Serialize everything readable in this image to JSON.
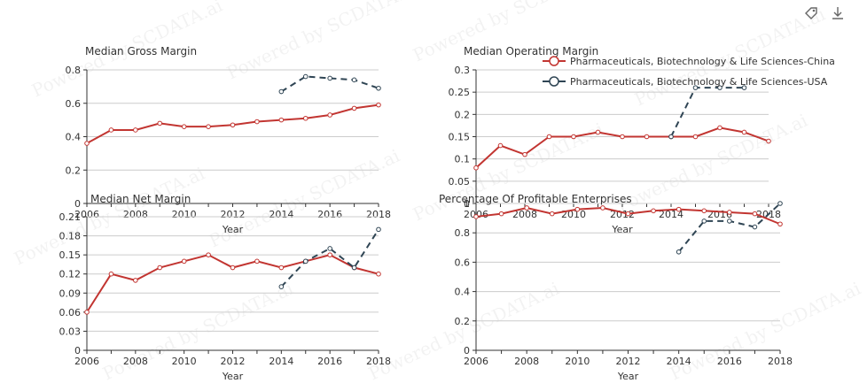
{
  "toolbox": {
    "icons": [
      "tag-icon",
      "download-icon"
    ]
  },
  "watermark": "Powered by SCDATA.ai",
  "colors": {
    "china": "#c23531",
    "usa": "#2f4554",
    "axis": "#333333",
    "grid": "#cccccc",
    "text": "#333333"
  },
  "chart_data": [
    {
      "type": "line",
      "title": "Median Gross Margin",
      "xlabel": "Year",
      "x": [
        2006,
        2007,
        2008,
        2009,
        2010,
        2011,
        2012,
        2013,
        2014,
        2015,
        2016,
        2017,
        2018
      ],
      "xticks": [
        2006,
        2008,
        2010,
        2012,
        2014,
        2016,
        2018
      ],
      "ylim": [
        0,
        0.8
      ],
      "yticks": [
        0,
        0.2,
        0.4,
        0.6,
        0.8
      ],
      "grid": true,
      "series": [
        {
          "name": "Pharmaceuticals, Biotechnology & Life Sciences-China",
          "x": [
            2006,
            2007,
            2008,
            2009,
            2010,
            2011,
            2012,
            2013,
            2014,
            2015,
            2016,
            2017,
            2018
          ],
          "values": [
            0.36,
            0.44,
            0.44,
            0.48,
            0.46,
            0.46,
            0.47,
            0.49,
            0.5,
            0.51,
            0.53,
            0.57,
            0.59
          ]
        },
        {
          "name": "Pharmaceuticals, Biotechnology & Life Sciences-USA",
          "x": [
            2014,
            2015,
            2016,
            2017,
            2018
          ],
          "values": [
            0.67,
            0.76,
            0.75,
            0.74,
            0.69
          ]
        }
      ]
    },
    {
      "type": "line",
      "title": "Median Operating Margin",
      "xlabel": "Year",
      "x": [
        2006,
        2007,
        2008,
        2009,
        2010,
        2011,
        2012,
        2013,
        2014,
        2015,
        2016,
        2017,
        2018
      ],
      "xticks": [
        2006,
        2008,
        2010,
        2012,
        2014,
        2016,
        2018
      ],
      "ylim": [
        0,
        0.3
      ],
      "yticks": [
        0,
        0.05,
        0.1,
        0.15,
        0.2,
        0.25,
        0.3
      ],
      "grid": true,
      "legend": "top-right",
      "series": [
        {
          "name": "Pharmaceuticals, Biotechnology & Life Sciences-China",
          "x": [
            2006,
            2007,
            2008,
            2009,
            2010,
            2011,
            2012,
            2013,
            2014,
            2015,
            2016,
            2017,
            2018
          ],
          "values": [
            0.08,
            0.13,
            0.11,
            0.15,
            0.15,
            0.16,
            0.15,
            0.15,
            0.15,
            0.15,
            0.17,
            0.16,
            0.14
          ]
        },
        {
          "name": "Pharmaceuticals, Biotechnology & Life Sciences-USA",
          "x": [
            2014,
            2015,
            2016,
            2017
          ],
          "values": [
            0.15,
            0.26,
            0.26,
            0.26
          ]
        }
      ]
    },
    {
      "type": "line",
      "title": "Median Net Margin",
      "xlabel": "Year",
      "x": [
        2006,
        2007,
        2008,
        2009,
        2010,
        2011,
        2012,
        2013,
        2014,
        2015,
        2016,
        2017,
        2018
      ],
      "xticks": [
        2006,
        2008,
        2010,
        2012,
        2014,
        2016,
        2018
      ],
      "ylim": [
        0,
        0.21
      ],
      "yticks": [
        0,
        0.03,
        0.06,
        0.09,
        0.12,
        0.15,
        0.18,
        0.21
      ],
      "grid": true,
      "series": [
        {
          "name": "Pharmaceuticals, Biotechnology & Life Sciences-China",
          "x": [
            2006,
            2007,
            2008,
            2009,
            2010,
            2011,
            2012,
            2013,
            2014,
            2015,
            2016,
            2017,
            2018
          ],
          "values": [
            0.06,
            0.12,
            0.11,
            0.13,
            0.14,
            0.15,
            0.13,
            0.14,
            0.13,
            0.14,
            0.15,
            0.13,
            0.12
          ]
        },
        {
          "name": "Pharmaceuticals, Biotechnology & Life Sciences-USA",
          "x": [
            2014,
            2015,
            2016,
            2017,
            2018
          ],
          "values": [
            0.1,
            0.14,
            0.16,
            0.13,
            0.19
          ]
        }
      ]
    },
    {
      "type": "line",
      "title": "Percentage Of Profitable Enterprises",
      "xlabel": "Year",
      "x": [
        2006,
        2007,
        2008,
        2009,
        2010,
        2011,
        2012,
        2013,
        2014,
        2015,
        2016,
        2017,
        2018
      ],
      "xticks": [
        2006,
        2008,
        2010,
        2012,
        2014,
        2016,
        2018
      ],
      "ylim": [
        0,
        1
      ],
      "yticks": [
        0,
        0.2,
        0.4,
        0.6,
        0.8,
        1
      ],
      "grid": true,
      "series": [
        {
          "name": "Pharmaceuticals, Biotechnology & Life Sciences-China",
          "x": [
            2006,
            2007,
            2008,
            2009,
            2010,
            2011,
            2012,
            2013,
            2014,
            2015,
            2016,
            2017,
            2018
          ],
          "values": [
            0.91,
            0.93,
            0.97,
            0.93,
            0.96,
            0.97,
            0.93,
            0.95,
            0.96,
            0.95,
            0.94,
            0.93,
            0.86
          ]
        },
        {
          "name": "Pharmaceuticals, Biotechnology & Life Sciences-USA",
          "x": [
            2014,
            2015,
            2016,
            2017,
            2018
          ],
          "values": [
            0.67,
            0.88,
            0.88,
            0.84,
            1.0
          ]
        }
      ]
    }
  ]
}
